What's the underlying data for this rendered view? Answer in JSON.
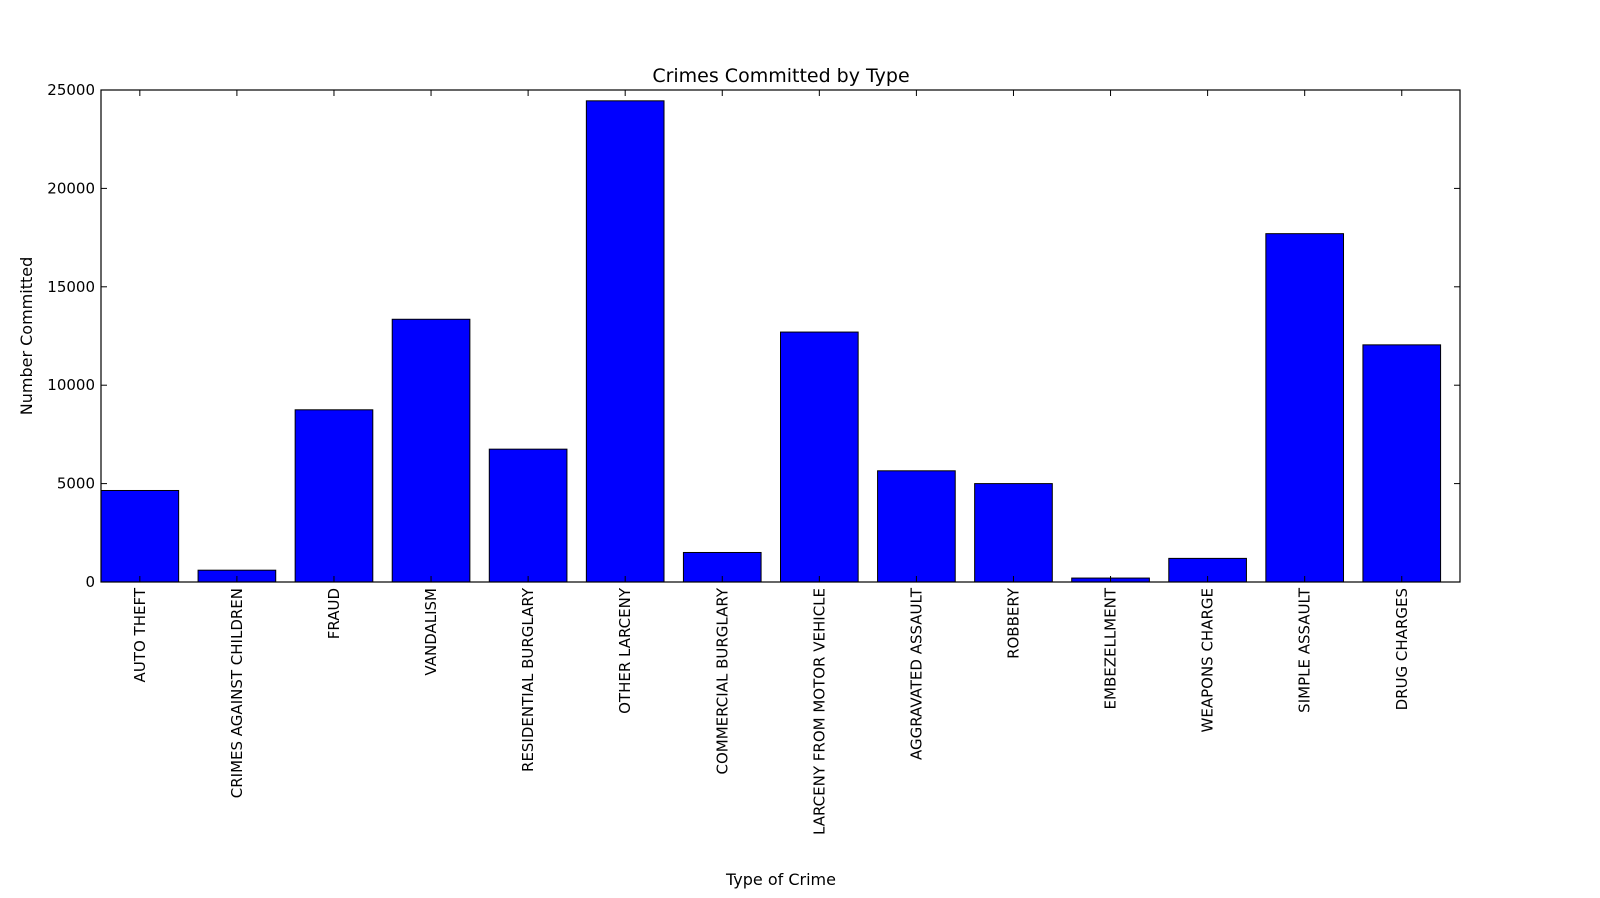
{
  "chart_data": {
    "type": "bar",
    "title": "Crimes Committed by Type",
    "xlabel": "Type of Crime",
    "ylabel": "Number Committed",
    "ylim": [
      0,
      25000
    ],
    "yticks": [
      "0",
      "5000",
      "10000",
      "15000",
      "20000",
      "25000"
    ],
    "grid": false,
    "bar_color": "#0000ff",
    "categories": [
      "AUTO THEFT",
      "CRIMES AGAINST CHILDREN",
      "FRAUD",
      "VANDALISM",
      "RESIDENTIAL BURGLARY",
      "OTHER LARCENY",
      "COMMERCIAL BURGLARY",
      "LARCENY FROM MOTOR VEHICLE",
      "AGGRAVATED ASSAULT",
      "ROBBERY",
      "EMBEZELLMENT",
      "WEAPONS CHARGE",
      "SIMPLE ASSAULT",
      "DRUG CHARGES"
    ],
    "values": [
      4650,
      600,
      8750,
      13350,
      6750,
      24450,
      1500,
      12700,
      5650,
      5000,
      200,
      1200,
      17700,
      12050
    ]
  }
}
